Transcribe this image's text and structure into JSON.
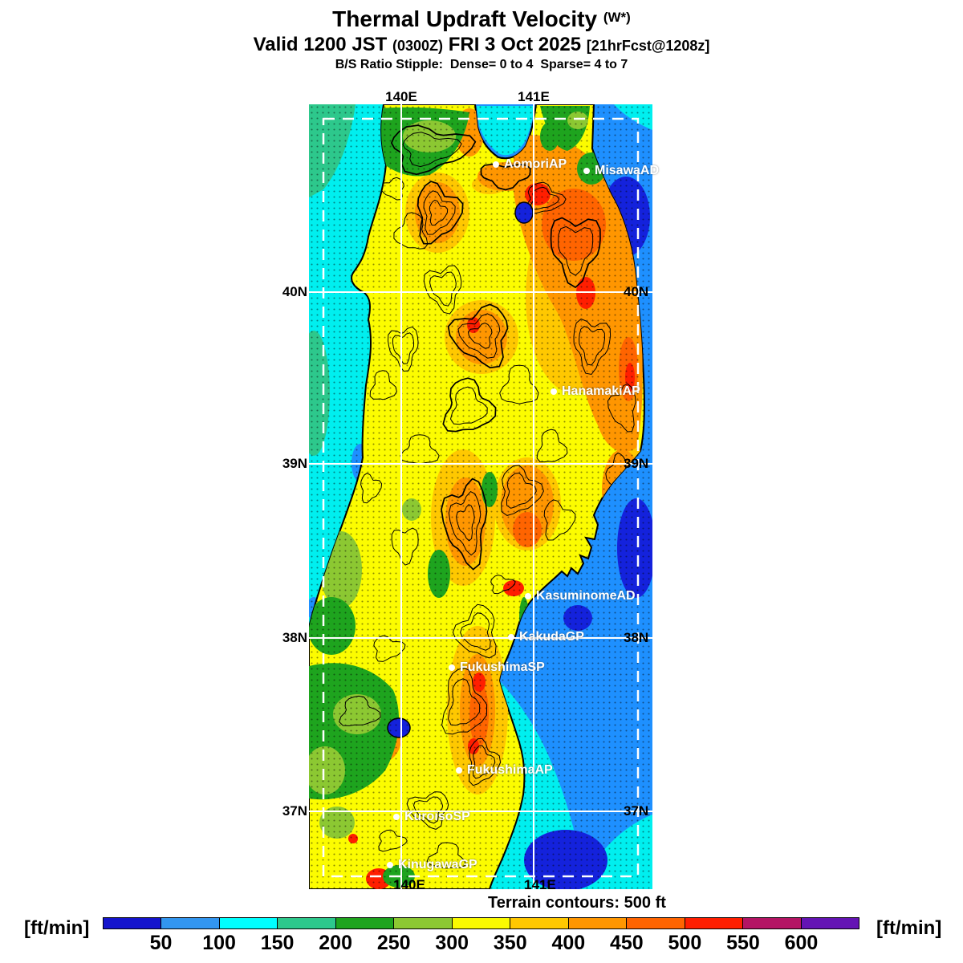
{
  "header": {
    "title": "Thermal Updraft Velocity",
    "title_suffix": "(W*)",
    "valid_prefix": "Valid 1200 JST",
    "valid_zulu": "(0300Z)",
    "valid_date": "FRI 3 Oct 2025",
    "valid_fcst": "[21hrFcst@1208z]",
    "stipple_note": "B/S Ratio Stipple:  Dense= 0 to 4  Sparse= 4 to 7"
  },
  "map": {
    "lon_labels": [
      "140E",
      "141E"
    ],
    "lat_labels": [
      "40N",
      "39N",
      "38N",
      "37N"
    ],
    "stations": [
      "AomoriAP",
      "MisawaAD",
      "HanamakiAP",
      "KasuminomeAD",
      "KakudaGP",
      "FukushimaSP",
      "FukushimaAP",
      "KuroisoSP",
      "KinugawaGP"
    ],
    "terrain_note": "Terrain contours: 500 ft",
    "palette": {
      "ocean_cyan": "#00EFEF",
      "ocean_blue": "#1E90FF",
      "ocean_deep_blue": "#1422DC",
      "ocean_teal": "#2DC88C",
      "land_yellow": "#FCFC00",
      "land_gold": "#FFC800",
      "land_orange": "#FF9600",
      "land_deep_orange": "#FF6400",
      "land_red": "#FF1E00",
      "land_green": "#1EA41E",
      "land_yellow_green": "#8CC832"
    }
  },
  "colorbar": {
    "unit": "[ft/min]",
    "ticks": [
      "50",
      "100",
      "150",
      "200",
      "250",
      "300",
      "350",
      "400",
      "450",
      "500",
      "550",
      "600"
    ],
    "colors": [
      "#1414CC",
      "#3296F0",
      "#00FFFF",
      "#2DC88C",
      "#1EA41E",
      "#8CC832",
      "#FAFA00",
      "#FFC800",
      "#FF9600",
      "#FF6400",
      "#FF1E00",
      "#B41464",
      "#6414B4"
    ]
  }
}
